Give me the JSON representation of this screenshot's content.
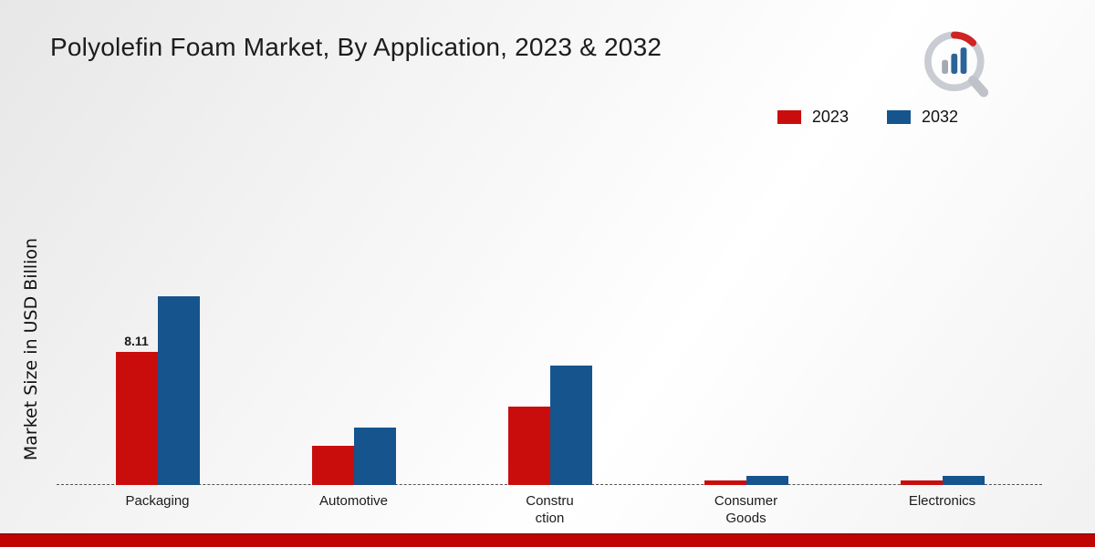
{
  "title": "Polyolefin Foam Market, By Application, 2023 & 2032",
  "legend": {
    "items": [
      {
        "label": "2023",
        "color": "#c90d0d"
      },
      {
        "label": "2032",
        "color": "#16548e"
      }
    ]
  },
  "chart_data": {
    "type": "bar",
    "title": "Polyolefin Foam Market, By Application, 2023 & 2032",
    "categories": [
      "Packaging",
      "Automotive",
      "Constru ction",
      "Consumer Goods",
      "Electronics"
    ],
    "series": [
      {
        "name": "2023",
        "color": "#c90d0d",
        "values": [
          8.11,
          2.4,
          4.8,
          0.3,
          0.3
        ]
      },
      {
        "name": "2032",
        "color": "#16548e",
        "values": [
          11.5,
          3.5,
          7.3,
          0.55,
          0.55
        ]
      }
    ],
    "xlabel": "",
    "ylabel": "Market Size in USD Billion",
    "ylim": [
      0,
      12
    ],
    "grid": false,
    "legend_position": "top-right",
    "baseline_style": "dashed",
    "data_labels": [
      {
        "series_index": 0,
        "category_index": 0,
        "text": "8.11"
      }
    ]
  }
}
